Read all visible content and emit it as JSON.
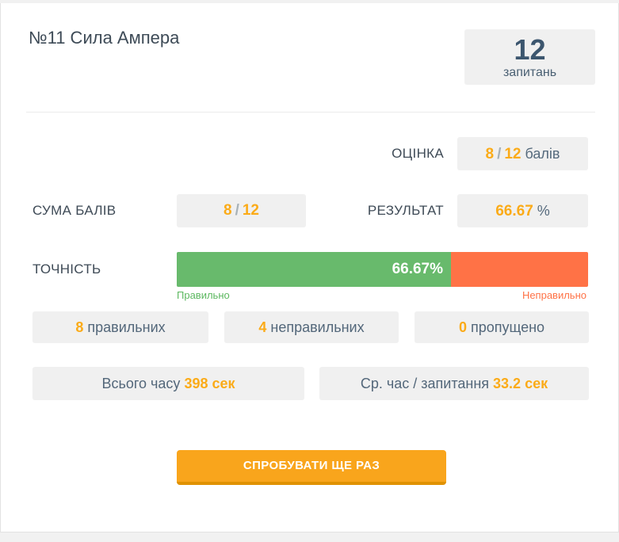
{
  "header": {
    "title": "№11 Сила Ампера",
    "questions": {
      "count": "12",
      "label": "запитань"
    }
  },
  "score_box": {
    "label": "ОЦІНКА",
    "num": "8",
    "sep": "/",
    "total": "12",
    "unit": "балів"
  },
  "sum_box": {
    "label": "СУМА БАЛІВ",
    "num": "8",
    "sep": "/",
    "total": "12"
  },
  "result_box": {
    "label": "РЕЗУЛЬТАТ",
    "value": "66.67",
    "unit": "%"
  },
  "accuracy": {
    "label": "ТОЧНІСТЬ",
    "percent_value": 66.67,
    "percent_label": "66.67%",
    "correct_label": "Правильно",
    "incorrect_label": "Неправильно"
  },
  "stats": [
    {
      "value": "8",
      "label": "правильних"
    },
    {
      "value": "4",
      "label": "неправильних"
    },
    {
      "value": "0",
      "label": "пропущено"
    }
  ],
  "time": [
    {
      "label": "Всього часу",
      "value": "398 сек"
    },
    {
      "label": "Ср. час / запитання",
      "value": "33.2 сек"
    }
  ],
  "actions": {
    "retry_label": "СПРОБУВАТИ ЩЕ РАЗ"
  },
  "colors": {
    "accent_orange": "#fbab18",
    "bar_green": "#68ba6c",
    "bar_orange": "#ff7246",
    "button_orange": "#f9a51c",
    "button_orange_dark": "#e09203",
    "text_dark": "#3e4a56",
    "text_slate": "#53677a",
    "box_background": "#f0f0f0",
    "page_background": "#f1f1f1"
  }
}
